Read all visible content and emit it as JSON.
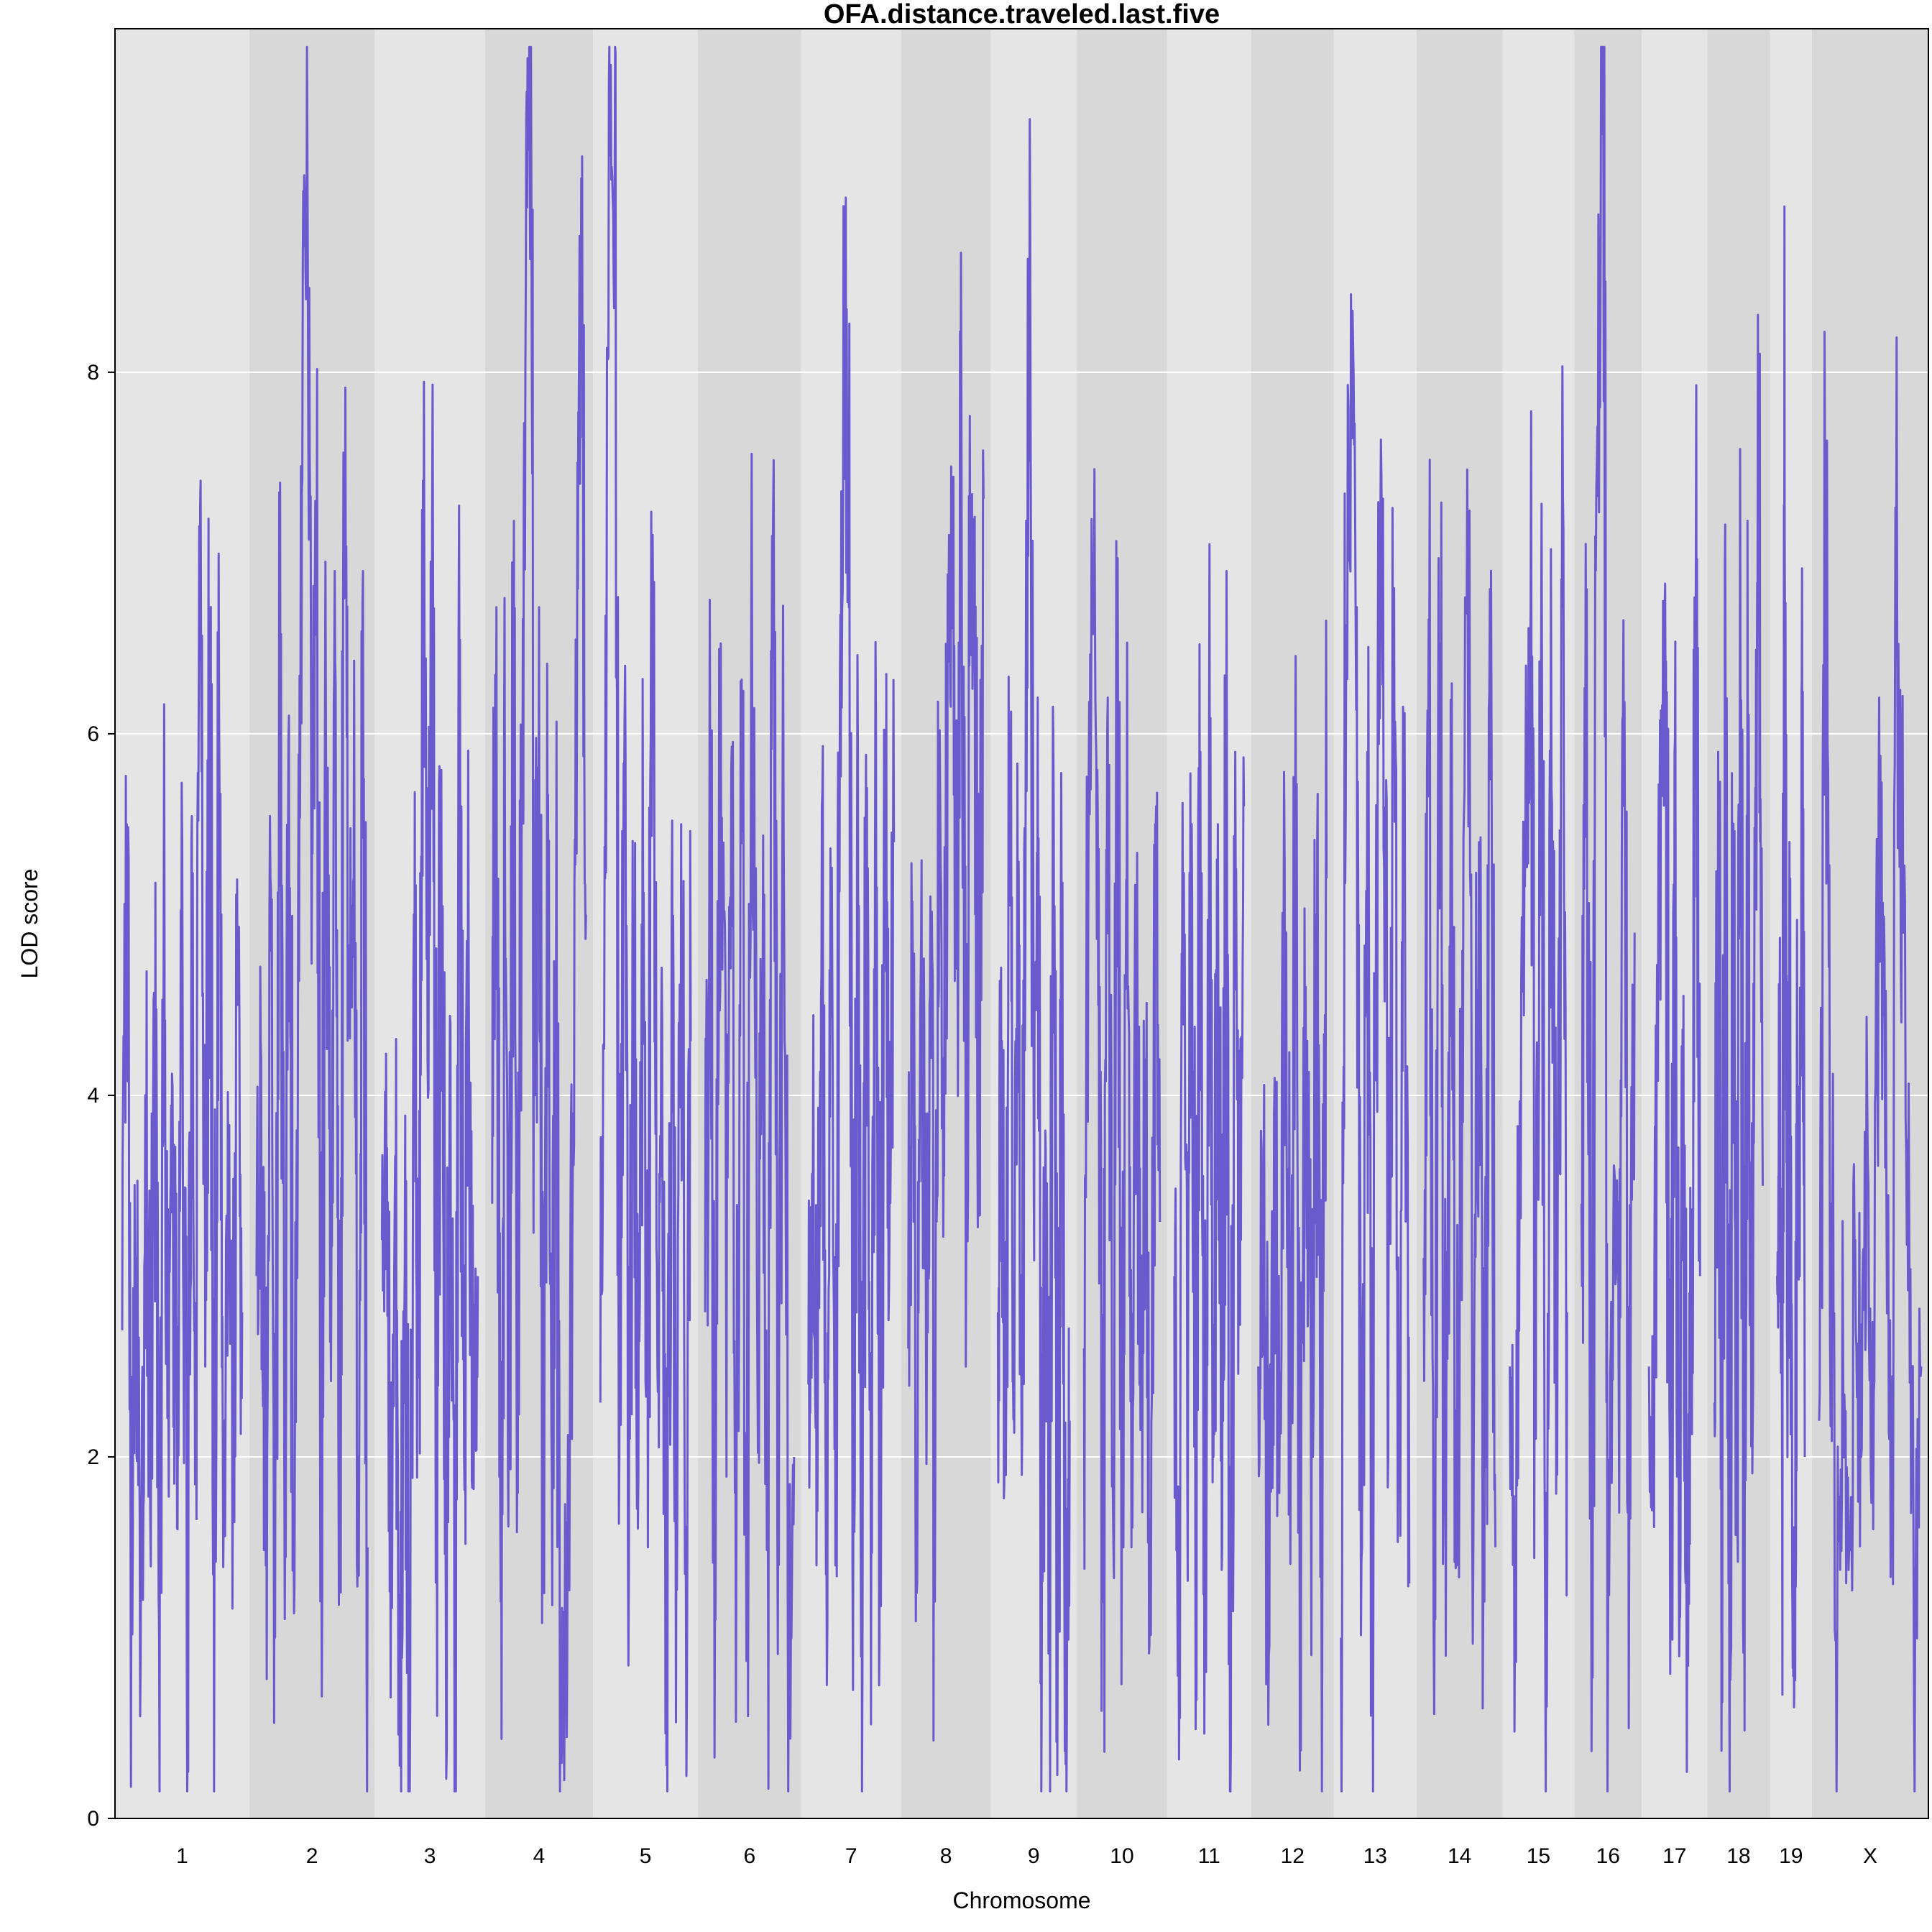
{
  "chart_data": {
    "type": "line",
    "title": "OFA.distance.traveled.last.five",
    "xlabel": "Chromosome",
    "ylabel": "LOD score",
    "ylim": [
      0,
      9.9
    ],
    "yticks": [
      0,
      2,
      4,
      6,
      8
    ],
    "grid": true,
    "line_color": "#6a5acd",
    "band_colors": [
      "#e5e5e5",
      "#d8d8d8"
    ],
    "chromosomes": [
      {
        "name": "1",
        "length": 195
      },
      {
        "name": "2",
        "length": 182
      },
      {
        "name": "3",
        "length": 160
      },
      {
        "name": "4",
        "length": 157
      },
      {
        "name": "5",
        "length": 152
      },
      {
        "name": "6",
        "length": 150
      },
      {
        "name": "7",
        "length": 145
      },
      {
        "name": "8",
        "length": 130
      },
      {
        "name": "9",
        "length": 125
      },
      {
        "name": "10",
        "length": 131
      },
      {
        "name": "11",
        "length": 122
      },
      {
        "name": "12",
        "length": 120
      },
      {
        "name": "13",
        "length": 120
      },
      {
        "name": "14",
        "length": 125
      },
      {
        "name": "15",
        "length": 104
      },
      {
        "name": "16",
        "length": 98
      },
      {
        "name": "17",
        "length": 95
      },
      {
        "name": "18",
        "length": 91
      },
      {
        "name": "19",
        "length": 61
      },
      {
        "name": "X",
        "length": 169
      }
    ],
    "series": [
      {
        "points": [
          {
            "chr": "1",
            "values": [
              2.7,
              5.5,
              1.5,
              3.1,
              0.9,
              4.0,
              2.0,
              4.5,
              1.0,
              5.0,
              2.5,
              3.6,
              1.6,
              5.4,
              0.8,
              5.4,
              2.3,
              7.4,
              2.5,
              6.4,
              1.5,
              6.1,
              1.7,
              3.5,
              2.0,
              4.5,
              2.8
            ]
          },
          {
            "chr": "2",
            "values": [
              3.0,
              4.2,
              1.4,
              5.2,
              1.0,
              5.9,
              2.0,
              6.1,
              1.6,
              5.0,
              8.6,
              9.2,
              5.5,
              6.9,
              1.8,
              6.0,
              2.9,
              6.4,
              2.0,
              7.3,
              4.5,
              5.2,
              2.0,
              6.9,
              1.5
            ]
          },
          {
            "chr": "3",
            "values": [
              3.2,
              3.6,
              1.7,
              3.1,
              0.6,
              3.0,
              0.6,
              5.0,
              2.5,
              7.4,
              4.2,
              7.2,
              2.0,
              5.8,
              1.1,
              4.4,
              0.7,
              5.9,
              2.0,
              4.7,
              2.0,
              3.0
            ]
          },
          {
            "chr": "4",
            "values": [
              3.4,
              6.7,
              1.2,
              5.3,
              2.3,
              6.3,
              1.8,
              5.9,
              9.4,
              9.2,
              4.0,
              6.7,
              1.5,
              5.1,
              1.9,
              4.7,
              0.7,
              0.8,
              1.8,
              3.9,
              7.5,
              8.3,
              5.0
            ]
          },
          {
            "chr": "5",
            "values": [
              2.3,
              5.2,
              9.2,
              8.9,
              2.0,
              5.6,
              1.4,
              4.8,
              1.9,
              5.0,
              1.5,
              7.1,
              2.5,
              4.4,
              0.6,
              5.1,
              1.6,
              5.5,
              1.3,
              4.3
            ]
          },
          {
            "chr": "6",
            "values": [
              2.8,
              5.5,
              1.1,
              6.5,
              3.0,
              5.8,
              1.8,
              6.3,
              1.4,
              6.2,
              2.5,
              4.6,
              1.9,
              7.2,
              2.0,
              5.5,
              1.0,
              2.0
            ]
          },
          {
            "chr": "7",
            "values": [
              2.4,
              3.6,
              1.7,
              5.6,
              1.6,
              4.6,
              1.4,
              6.3,
              8.4,
              6.7,
              2.0,
              5.9,
              0.8,
              5.7,
              2.0,
              6.1,
              1.4,
              5.8,
              3.2,
              5.4
            ]
          },
          {
            "chr": "8",
            "values": [
              2.6,
              4.8,
              1.3,
              5.3,
              2.5,
              5.1,
              1.2,
              5.9,
              3.8,
              6.4,
              7.1,
              4.7,
              7.8,
              2.5,
              6.7,
              7.2,
              3.5,
              7.3
            ]
          },
          {
            "chr": "9",
            "values": [
              2.8,
              4.3,
              1.9,
              5.6,
              2.4,
              4.7,
              1.9,
              6.2,
              9.4,
              3.5,
              6.2,
              0.8,
              3.7,
              1.4,
              5.6,
              0.9,
              4.9,
              0.3,
              2.2
            ]
          },
          {
            "chr": "10",
            "values": [
              2.6,
              5.8,
              7.0,
              4.5,
              1.2,
              6.2,
              2.0,
              6.3,
              1.9,
              5.2,
              1.5,
              4.8,
              2.2,
              4.2,
              1.2,
              5.5,
              3.3
            ]
          },
          {
            "chr": "11",
            "values": [
              3.0,
              1.1,
              4.8,
              1.9,
              5.5,
              1.5,
              5.9,
              1.4,
              6.0,
              2.0,
              5.5,
              1.5,
              6.9,
              0.4,
              5.9,
              3.0,
              5.6
            ]
          },
          {
            "chr": "12",
            "values": [
              2.5,
              3.5,
              0.9,
              3.9,
              1.8,
              5.3,
              2.3,
              5.3,
              1.6,
              4.6,
              2.1,
              5.0,
              1.4,
              5.2
            ]
          },
          {
            "chr": "13",
            "values": [
              1.0,
              6.6,
              8.0,
              6.7,
              1.5,
              5.9,
              1.3,
              6.3,
              7.3,
              2.0,
              6.5,
              1.8,
              5.6,
              1.3
            ]
          },
          {
            "chr": "14",
            "values": [
              3.1,
              6.1,
              1.3,
              6.5,
              0.9,
              5.0,
              1.4,
              4.8,
              6.5,
              1.5,
              5.4,
              1.2,
              6.8,
              1.5
            ]
          },
          {
            "chr": "15",
            "values": [
              2.5,
              1.2,
              3.6,
              5.5,
              6.7,
              2.1,
              6.3,
              1.8,
              5.7,
              2.5,
              6.7,
              2.8
            ]
          },
          {
            "chr": "16",
            "values": [
              3.4,
              6.8,
              1.4,
              7.7,
              9.8,
              1.0,
              3.3,
              2.5,
              5.6,
              1.6,
              4.9
            ]
          },
          {
            "chr": "17",
            "values": [
              2.5,
              2.0,
              4.5,
              5.8,
              6.4,
              0.8,
              5.9,
              1.4,
              3.6,
              1.3,
              2.9,
              6.8,
              3.0
            ]
          },
          {
            "chr": "18",
            "values": [
              2.3,
              5.9,
              1.5,
              6.1,
              0.7,
              5.5,
              2.2,
              6.4,
              1.7,
              5.7,
              2.3,
              5.7,
              7.8,
              3.5
            ]
          },
          {
            "chr": "19",
            "values": [
              3.0,
              4.3,
              1.8,
              7.1,
              2.6,
              4.8,
              1.3,
              0.9,
              4.3,
              3.0,
              5.9,
              2.0
            ]
          },
          {
            "chr": "X",
            "values": [
              2.2,
              7.2,
              3.4,
              1.0,
              2.5,
              1.5,
              3.2,
              2.0,
              4.0,
              1.6,
              6.2,
              3.6,
              2.0,
              6.5,
              4.9,
              3.3,
              1.2,
              2.5
            ]
          }
        ]
      }
    ]
  }
}
